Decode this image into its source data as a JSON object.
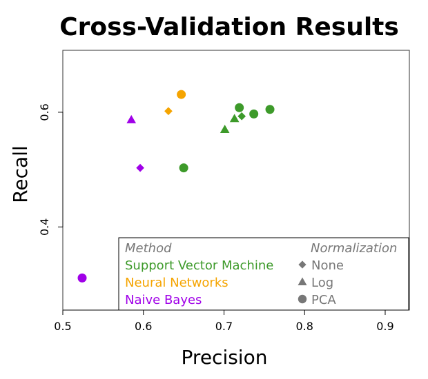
{
  "chart_data": {
    "type": "scatter",
    "title": "Cross-Validation Results",
    "xlabel": "Precision",
    "ylabel": "Recall",
    "xlim": [
      0.5,
      0.93
    ],
    "ylim": [
      0.255,
      0.708
    ],
    "xticks": [
      "0.5",
      "0.6",
      "0.7",
      "0.8",
      "0.9"
    ],
    "xtick_values": [
      0.5,
      0.6,
      0.7,
      0.8,
      0.9
    ],
    "yticks": [
      "0.4",
      "0.6"
    ],
    "ytick_values": [
      0.4,
      0.6
    ],
    "grid": false,
    "legend_placement": "bottom-right",
    "legend": {
      "method_title": "Method",
      "normalization_title": "Normalization",
      "methods": [
        {
          "name": "Support Vector Machine",
          "color": "#3d9a2a"
        },
        {
          "name": "Neural Networks",
          "color": "#f5a400"
        },
        {
          "name": "Naive Bayes",
          "color": "#a000e8"
        }
      ],
      "normalizations": [
        {
          "name": "None",
          "shape": "diamond",
          "color": "#777777"
        },
        {
          "name": "Log",
          "shape": "triangle",
          "color": "#777777"
        },
        {
          "name": "PCA",
          "shape": "circle",
          "color": "#777777"
        }
      ]
    },
    "points": [
      {
        "method": "Support Vector Machine",
        "normalization": "PCA",
        "x": 0.65,
        "y": 0.503
      },
      {
        "method": "Support Vector Machine",
        "normalization": "Log",
        "x": 0.701,
        "y": 0.57
      },
      {
        "method": "Support Vector Machine",
        "normalization": "Log",
        "x": 0.713,
        "y": 0.589
      },
      {
        "method": "Support Vector Machine",
        "normalization": "None",
        "x": 0.722,
        "y": 0.593
      },
      {
        "method": "Support Vector Machine",
        "normalization": "PCA",
        "x": 0.719,
        "y": 0.608
      },
      {
        "method": "Support Vector Machine",
        "normalization": "PCA",
        "x": 0.737,
        "y": 0.597
      },
      {
        "method": "Support Vector Machine",
        "normalization": "PCA",
        "x": 0.757,
        "y": 0.605
      },
      {
        "method": "Neural Networks",
        "normalization": "PCA",
        "x": 0.647,
        "y": 0.631
      },
      {
        "method": "Neural Networks",
        "normalization": "None",
        "x": 0.631,
        "y": 0.602
      },
      {
        "method": "Naive Bayes",
        "normalization": "Log",
        "x": 0.585,
        "y": 0.587
      },
      {
        "method": "Naive Bayes",
        "normalization": "None",
        "x": 0.596,
        "y": 0.503
      },
      {
        "method": "Naive Bayes",
        "normalization": "PCA",
        "x": 0.524,
        "y": 0.311
      }
    ]
  }
}
